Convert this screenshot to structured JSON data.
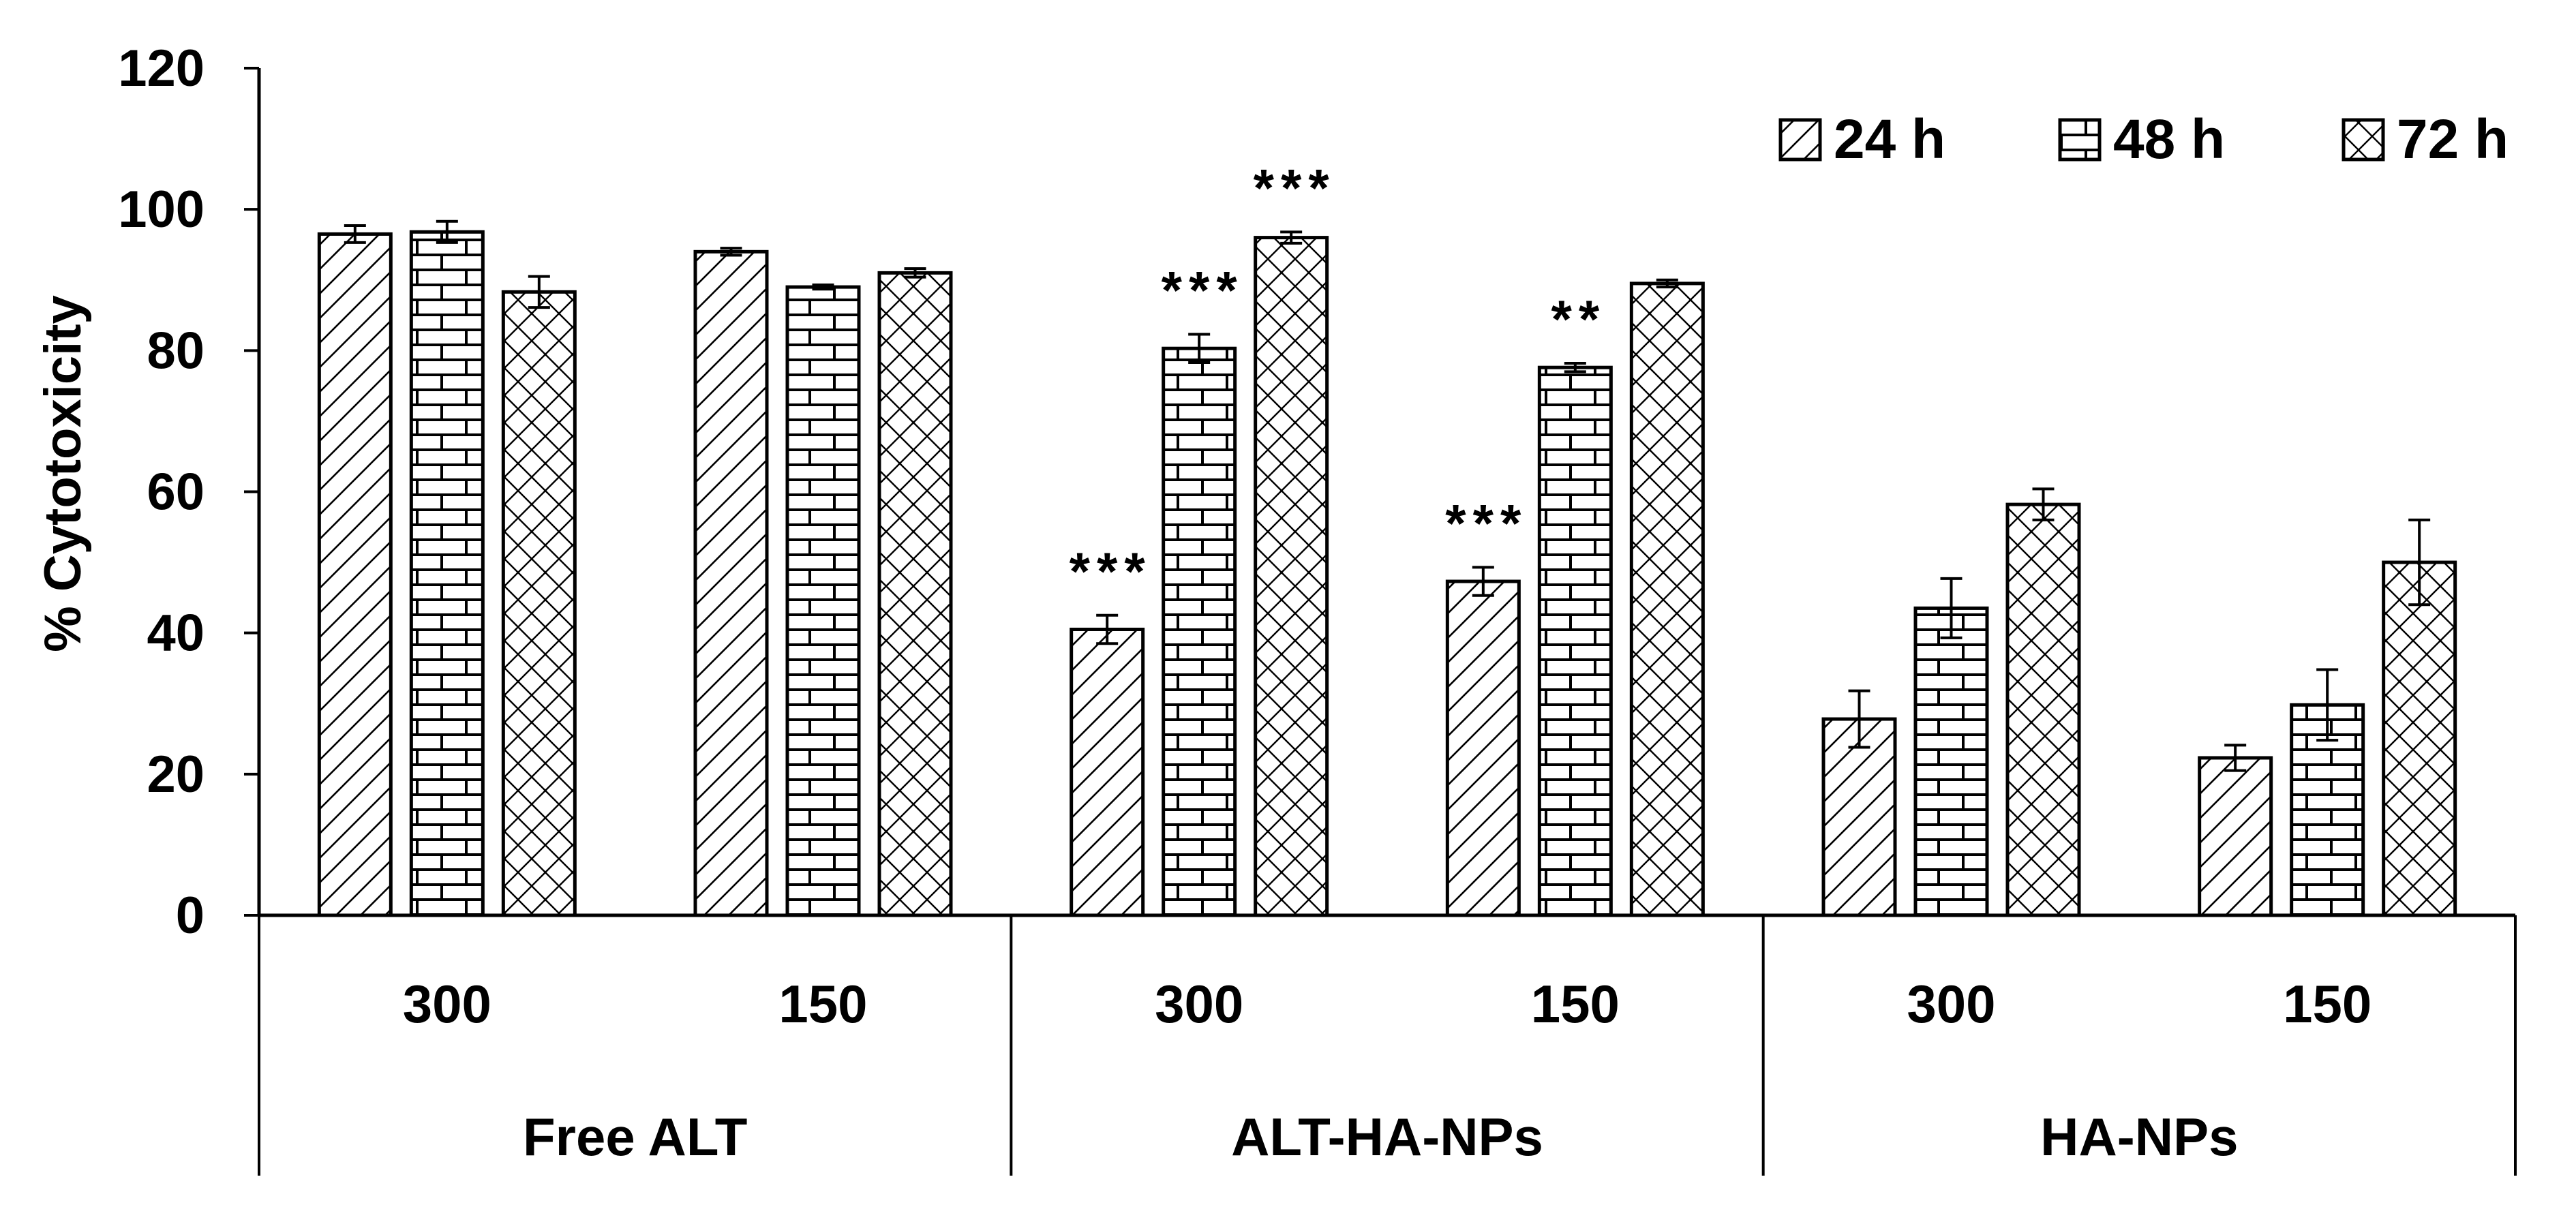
{
  "chart_data": {
    "type": "bar",
    "ylabel": "% Cytotoxicity",
    "xlabel": "",
    "ylim": [
      0,
      120
    ],
    "yticks": [
      "0",
      "20",
      "40",
      "60",
      "80",
      "100",
      "120"
    ],
    "grid": false,
    "legend_position": "top-right",
    "groups": [
      {
        "label": "Free ALT",
        "categories": [
          "300",
          "150"
        ]
      },
      {
        "label": "ALT-HA-NPs",
        "categories": [
          "300",
          "150"
        ]
      },
      {
        "label": "HA-NPs",
        "categories": [
          "300",
          "150"
        ]
      }
    ],
    "categories": [
      "300",
      "150",
      "300",
      "150",
      "300",
      "150"
    ],
    "series": [
      {
        "name": "24 h",
        "pattern": "diagonal",
        "values": [
          96.5,
          94.0,
          40.5,
          47.3,
          27.8,
          22.3
        ],
        "errors": [
          1.2,
          0.5,
          2.0,
          2.0,
          4.0,
          1.8
        ],
        "significance": [
          "",
          "",
          "***",
          "***",
          "",
          ""
        ]
      },
      {
        "name": "48 h",
        "pattern": "brick",
        "values": [
          96.8,
          89.0,
          80.3,
          77.6,
          43.5,
          29.8
        ],
        "errors": [
          1.5,
          0.3,
          2.0,
          0.6,
          4.2,
          5.0
        ],
        "significance": [
          "",
          "",
          "***",
          "**",
          "",
          ""
        ]
      },
      {
        "name": "72 h",
        "pattern": "checker",
        "values": [
          88.3,
          91.0,
          96.0,
          89.5,
          58.2,
          50.0
        ],
        "errors": [
          2.2,
          0.6,
          0.8,
          0.5,
          2.2,
          6.0
        ],
        "significance": [
          "",
          "",
          "***",
          "",
          "",
          ""
        ]
      }
    ]
  }
}
